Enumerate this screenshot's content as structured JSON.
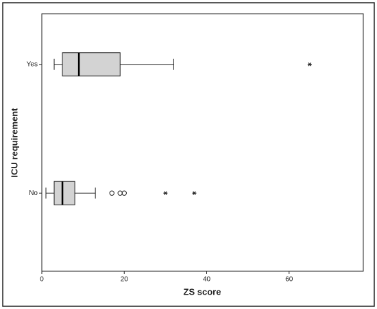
{
  "chart_data": {
    "type": "boxplot",
    "xlabel": "ZS score",
    "ylabel": "ICU requirement",
    "categories": [
      "Yes",
      "No"
    ],
    "boxes": [
      {
        "whisker_low": 3,
        "q1": 5,
        "median": 9,
        "q3": 19,
        "whisker_high": 32,
        "outliers": [],
        "extremes": [
          65
        ]
      },
      {
        "whisker_low": 1,
        "q1": 3,
        "median": 5,
        "q3": 8,
        "whisker_high": 13,
        "outliers": [
          17,
          19,
          20
        ],
        "extremes": [
          30,
          37
        ]
      }
    ],
    "color": "#d3d3d3",
    "xlim": [
      0,
      78
    ],
    "xticks": [
      0,
      20,
      40,
      60
    ]
  }
}
